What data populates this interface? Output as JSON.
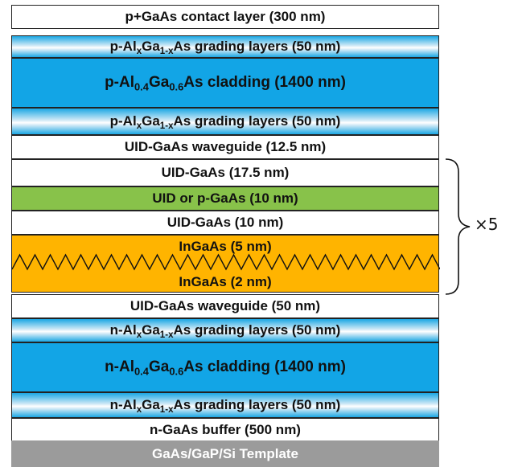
{
  "layers": {
    "contact": "p+GaAs contact layer (300 nm)",
    "p_grade_top": {
      "pre": "p-Al",
      "x1": "x",
      "mid": "Ga",
      "x2": "1-x",
      "post": "As grading layers (50 nm)"
    },
    "p_clad": {
      "pre": "p-Al",
      "s1": "0.4",
      "mid": "Ga",
      "s2": "0.6",
      "post": "As cladding (1400 nm)"
    },
    "p_grade_bot": {
      "pre": "p-Al",
      "x1": "x",
      "mid": "Ga",
      "x2": "1-x",
      "post": "As grading layers (50 nm)"
    },
    "wg_top": "UID-GaAs waveguide (12.5 nm)",
    "uid_175": "UID-GaAs (17.5 nm)",
    "uid_p": "UID or p-GaAs (10 nm)",
    "uid_10": "UID-GaAs (10 nm)",
    "ingaas_5": "InGaAs (5 nm)",
    "ingaas_2": "InGaAs (2 nm)",
    "wg_bot": "UID-GaAs waveguide (50 nm)",
    "n_grade_top": {
      "pre": "n-Al",
      "x1": "x",
      "mid": "Ga",
      "x2": "1-x",
      "post": "As grading layers (50 nm)"
    },
    "n_clad": {
      "pre": "n-Al",
      "s1": "0.4",
      "mid": "Ga",
      "s2": "0.6",
      "post": "As cladding (1400 nm)"
    },
    "n_grade_bot": {
      "pre": "n-Al",
      "x1": "x",
      "mid": "Ga",
      "x2": "1-x",
      "post": "As grading layers (50 nm)"
    },
    "buffer": "n-GaAs buffer (500 nm)",
    "template": "GaAs/GaP/Si Template"
  },
  "repeat_label": "×5",
  "colors": {
    "cladding": "#12a5e6",
    "green": "#88c24a",
    "orange": "#ffb400",
    "template": "#9b9b9b"
  }
}
